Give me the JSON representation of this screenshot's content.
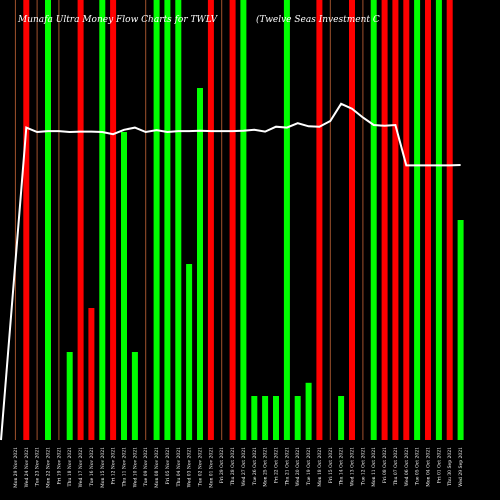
{
  "chart_data": {
    "type": "bar",
    "title": "Munafa Ultra Money Flow  Charts for TWLV",
    "subtitle": "(Twelve Seas Investment C",
    "xlabel": "",
    "ylabel": "",
    "grid": false,
    "ylim": [
      0,
      100
    ],
    "bar_colors": {
      "up": "#00ff00",
      "down": "#ff0000",
      "thin": "#a0522d",
      "line": "#ffffff"
    },
    "categories": [
      "Mon 29 Nov 2021",
      "Wed 24 Nov 2021",
      "Tue 23 Nov 2021",
      "Mon 22 Nov 2021",
      "Fri 19 Nov 2021",
      "Thu 18 Nov 2021",
      "Wed 17 Nov 2021",
      "Tue 16 Nov 2021",
      "Mon 15 Nov 2021",
      "Fri 12 Nov 2021",
      "Thu 11 Nov 2021",
      "Wed 10 Nov 2021",
      "Tue 09 Nov 2021",
      "Mon 08 Nov 2021",
      "Fri 05 Nov 2021",
      "Thu 04 Nov 2021",
      "Wed 03 Nov 2021",
      "Tue 02 Nov 2021",
      "Mon 01 Nov 2021",
      "Fri 29 Oct 2021",
      "Thu 28 Oct 2021",
      "Wed 27 Oct 2021",
      "Tue 26 Oct 2021",
      "Mon 25 Oct 2021",
      "Fri 22 Oct 2021",
      "Thu 21 Oct 2021",
      "Wed 20 Oct 2021",
      "Tue 19 Oct 2021",
      "Mon 18 Oct 2021",
      "Fri 15 Oct 2021",
      "Thu 14 Oct 2021",
      "Wed 13 Oct 2021",
      "Tue 12 Oct 2021",
      "Mon 11 Oct 2021",
      "Fri 08 Oct 2021",
      "Thu 07 Oct 2021",
      "Wed 06 Oct 2021",
      "Tue 05 Oct 2021",
      "Mon 04 Oct 2021",
      "Fri 01 Oct 2021",
      "Thu 30 Sep 2021",
      "Wed 29 Sep 2021"
    ],
    "series": [
      {
        "role": "money-flow-bars",
        "values": [
          100,
          100,
          100,
          100,
          100,
          20,
          100,
          30,
          100,
          100,
          70,
          20,
          100,
          100,
          100,
          100,
          40,
          80,
          100,
          100,
          100,
          100,
          10,
          10,
          10,
          100,
          10,
          13,
          100,
          100,
          10,
          100,
          100,
          100,
          100,
          100,
          100,
          100,
          100,
          100,
          100,
          50
        ],
        "colors": [
          "thin",
          "red",
          "thin",
          "green",
          "thin",
          "green",
          "red",
          "red",
          "green",
          "red",
          "green",
          "green",
          "thin",
          "green",
          "green",
          "green",
          "green",
          "green",
          "red",
          "thin",
          "red",
          "green",
          "green",
          "green",
          "green",
          "green",
          "green",
          "green",
          "red",
          "thin",
          "green",
          "red",
          "thin",
          "green",
          "red",
          "red",
          "red",
          "green",
          "red",
          "green",
          "red",
          "green"
        ]
      },
      {
        "role": "price-line",
        "values": [
          0,
          71,
          70,
          70.2,
          70.2,
          70,
          70.1,
          70.1,
          70,
          69.5,
          70.5,
          71,
          70,
          70.4,
          70,
          70.2,
          70.2,
          70.3,
          70.2,
          70.2,
          70.2,
          70.3,
          70.5,
          70.1,
          71.2,
          71,
          72,
          71.3,
          71.2,
          72.5,
          76.4,
          75.3,
          73.3,
          71.6,
          71.4,
          71.6,
          62.4,
          62.4,
          62.4,
          62.4,
          62.4,
          62.5
        ]
      }
    ]
  }
}
